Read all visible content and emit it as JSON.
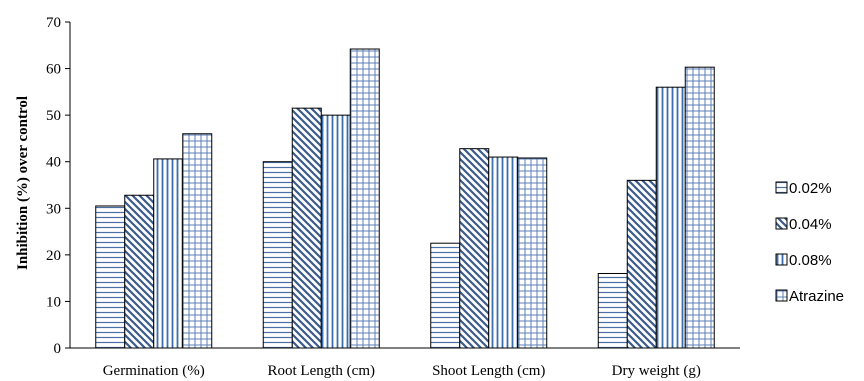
{
  "chart_data": {
    "type": "bar",
    "categories": [
      "Germination (%)",
      "Root Length (cm)",
      "Shoot Length (cm)",
      "Dry weight (g)"
    ],
    "series": [
      {
        "name": "0.02%",
        "values": [
          30.5,
          40.0,
          22.5,
          16.0
        ]
      },
      {
        "name": "0.04%",
        "values": [
          32.8,
          51.5,
          42.8,
          36.0
        ]
      },
      {
        "name": "0.08%",
        "values": [
          40.6,
          50.0,
          41.0,
          56.0
        ]
      },
      {
        "name": "Atrazine",
        "values": [
          46.0,
          64.2,
          40.8,
          60.3
        ]
      }
    ],
    "title": "",
    "xlabel": "",
    "ylabel": "Inhibition (%) over control",
    "ylim": [
      0,
      70
    ],
    "yticks": [
      "0",
      "10",
      "20",
      "30",
      "40",
      "50",
      "60",
      "70"
    ],
    "legend_position": "right",
    "grid": false,
    "colors": {
      "bar_fill": "#ffffff",
      "horizontal_lines": "#4a6fa5",
      "diagonal_lines": "#3b5b8a",
      "vertical_lines": "#3b6eaa",
      "grid_pattern": "#5b7fb5",
      "bar_outline": "#000000"
    }
  }
}
